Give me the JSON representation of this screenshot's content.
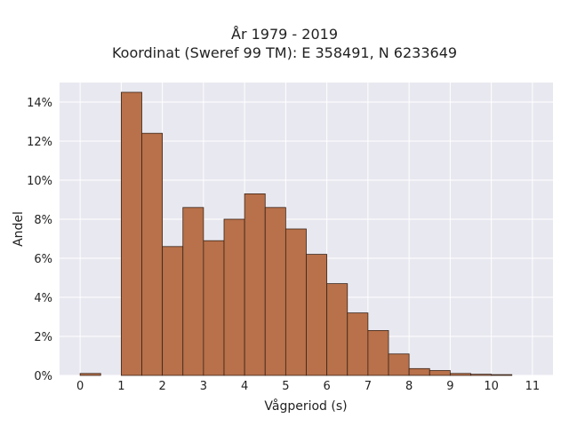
{
  "chart_data": {
    "type": "bar",
    "title_lines": [
      "År 1979 - 2019",
      "Koordinat (Sweref 99 TM): E 358491, N 6233649"
    ],
    "xlabel": "Vågperiod (s)",
    "ylabel": "Andel",
    "xlim": [
      -0.5,
      11.5
    ],
    "ylim": [
      0,
      15
    ],
    "xticks": [
      0,
      1,
      2,
      3,
      4,
      5,
      6,
      7,
      8,
      9,
      10,
      11
    ],
    "yticks": [
      0,
      2,
      4,
      6,
      8,
      10,
      12,
      14
    ],
    "ytick_labels": [
      "0%",
      "2%",
      "4%",
      "6%",
      "8%",
      "10%",
      "12%",
      "14%"
    ],
    "bin_width": 0.5,
    "bins": [
      {
        "x": 0.0,
        "value": 0.1
      },
      {
        "x": 1.0,
        "value": 14.5
      },
      {
        "x": 1.5,
        "value": 12.4
      },
      {
        "x": 2.0,
        "value": 6.6
      },
      {
        "x": 2.5,
        "value": 8.6
      },
      {
        "x": 3.0,
        "value": 6.9
      },
      {
        "x": 3.5,
        "value": 8.0
      },
      {
        "x": 4.0,
        "value": 9.3
      },
      {
        "x": 4.5,
        "value": 8.6
      },
      {
        "x": 5.0,
        "value": 7.5
      },
      {
        "x": 5.5,
        "value": 6.2
      },
      {
        "x": 6.0,
        "value": 4.7
      },
      {
        "x": 6.5,
        "value": 3.2
      },
      {
        "x": 7.0,
        "value": 2.3
      },
      {
        "x": 7.5,
        "value": 1.1
      },
      {
        "x": 8.0,
        "value": 0.35
      },
      {
        "x": 8.5,
        "value": 0.25
      },
      {
        "x": 9.0,
        "value": 0.1
      },
      {
        "x": 9.5,
        "value": 0.06
      },
      {
        "x": 10.0,
        "value": 0.04
      },
      {
        "x": 10.5,
        "value": 0.0
      }
    ],
    "bar_color": "#b8714a",
    "bar_edge_color": "#3a2418",
    "plot_bg_color": "#e8e8f0",
    "grid": true,
    "grid_color": "#ffffff"
  }
}
